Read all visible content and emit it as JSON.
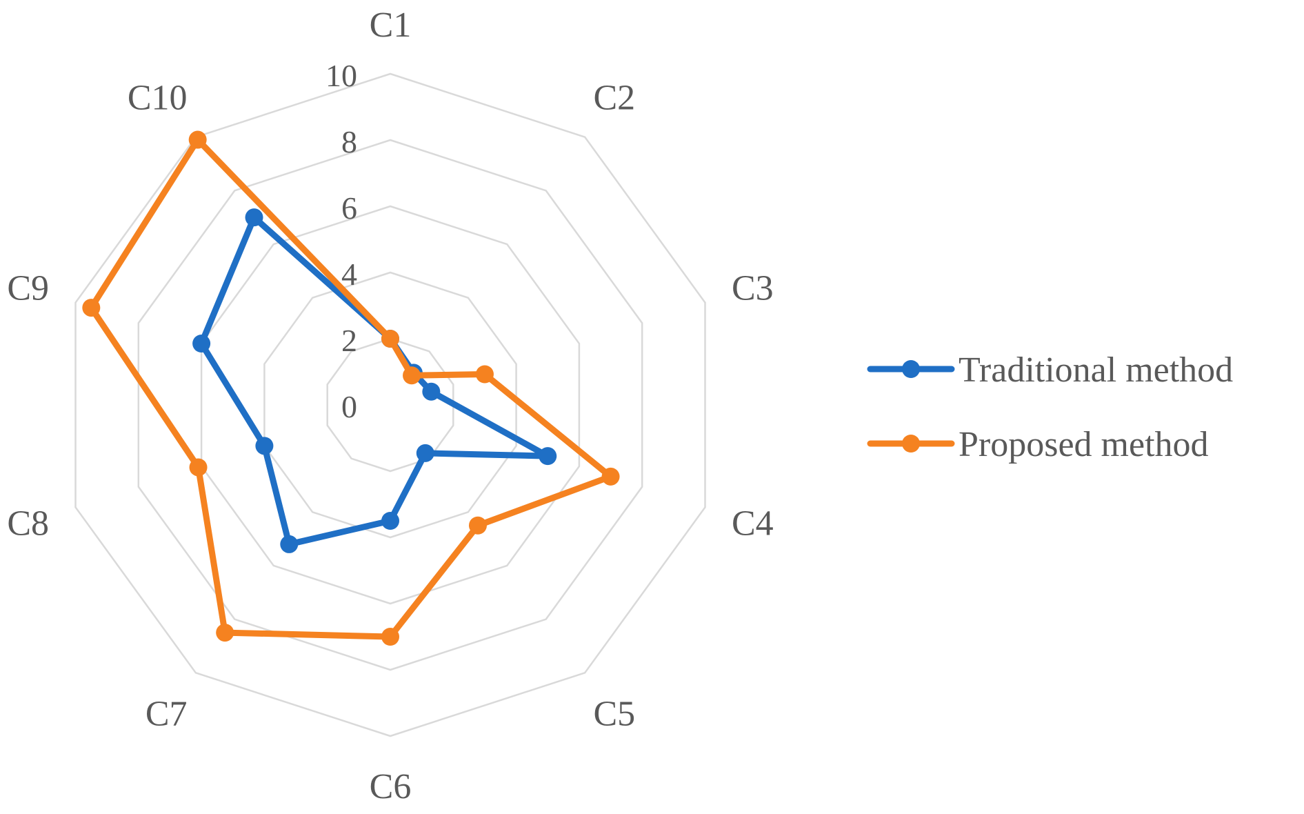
{
  "chart_data": {
    "type": "radar",
    "categories": [
      "C1",
      "C2",
      "C3",
      "C4",
      "C5",
      "C6",
      "C7",
      "C8",
      "C9",
      "C10"
    ],
    "rlim": [
      0,
      10
    ],
    "ticks": [
      0,
      2,
      4,
      6,
      8,
      10
    ],
    "tick_labels": [
      "0",
      "2",
      "4",
      "6",
      "8",
      "10"
    ],
    "grid": true,
    "legend_position": "right",
    "series": [
      {
        "name": "Traditional method",
        "color": "#1f6fc5",
        "values": [
          2,
          1.2,
          1.3,
          5.0,
          1.8,
          3.5,
          5.2,
          4.0,
          6.0,
          7.0
        ]
      },
      {
        "name": "Proposed method",
        "color": "#f58220",
        "values": [
          2,
          1.1,
          3.0,
          7.0,
          4.5,
          7.0,
          8.5,
          6.1,
          9.5,
          9.9
        ]
      }
    ]
  },
  "colors": {
    "grid": "#d9d9d9",
    "text": "#595959",
    "background": "#ffffff"
  }
}
